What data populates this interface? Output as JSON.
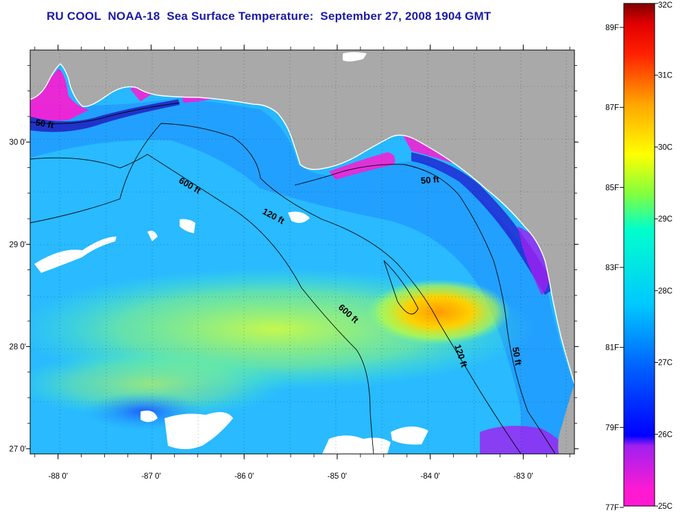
{
  "title": "RU COOL  NOAA-18  Sea Surface Temperature:  September 27, 2008 1904 GMT",
  "map": {
    "lon_range": [
      -88.3,
      -82.45
    ],
    "lat_range": [
      26.95,
      30.9
    ],
    "lon_ticks": [
      {
        "value": -88,
        "label": "-88 0'"
      },
      {
        "value": -87,
        "label": "-87 0'"
      },
      {
        "value": -86,
        "label": "-86 0'"
      },
      {
        "value": -85,
        "label": "-85 0'"
      },
      {
        "value": -84,
        "label": "-84 0'"
      },
      {
        "value": -83,
        "label": "-83 0'"
      }
    ],
    "lat_ticks": [
      {
        "value": 30,
        "label": "30 0'"
      },
      {
        "value": 29,
        "label": "29 0'"
      },
      {
        "value": 28,
        "label": "28 0'"
      },
      {
        "value": 27,
        "label": "27 0'"
      }
    ],
    "land_color": "#a9a9a9",
    "cloud_color": "#ffffff",
    "contour_labels": [
      {
        "label": "50 ft",
        "lon": -88.15,
        "lat": 30.15,
        "angle": 10
      },
      {
        "label": "600 ft",
        "lon": -86.6,
        "lat": 29.55,
        "angle": 30
      },
      {
        "label": "120 ft",
        "lon": -85.7,
        "lat": 29.25,
        "angle": 28
      },
      {
        "label": "50 ft",
        "lon": -84.0,
        "lat": 29.6,
        "angle": -5
      },
      {
        "label": "600 ft",
        "lon": -84.9,
        "lat": 28.3,
        "angle": 42
      },
      {
        "label": "120 ft",
        "lon": -83.7,
        "lat": 27.9,
        "angle": 72
      },
      {
        "label": "50 ft",
        "lon": -83.1,
        "lat": 27.9,
        "angle": 80
      }
    ]
  },
  "colorbar": {
    "fahrenheit": [
      "89F",
      "87F",
      "85F",
      "83F",
      "81F",
      "79F",
      "77F"
    ],
    "celsius": [
      "32C",
      "31C",
      "30C",
      "29C",
      "28C",
      "27C",
      "26C",
      "25C"
    ],
    "colors": [
      "#ff1ad2",
      "#a020f0",
      "#0000ff",
      "#0064ff",
      "#00c8ff",
      "#00ffd0",
      "#7cff40",
      "#ffff00",
      "#ffa500",
      "#ff3000",
      "#ff0000",
      "#800000"
    ]
  }
}
